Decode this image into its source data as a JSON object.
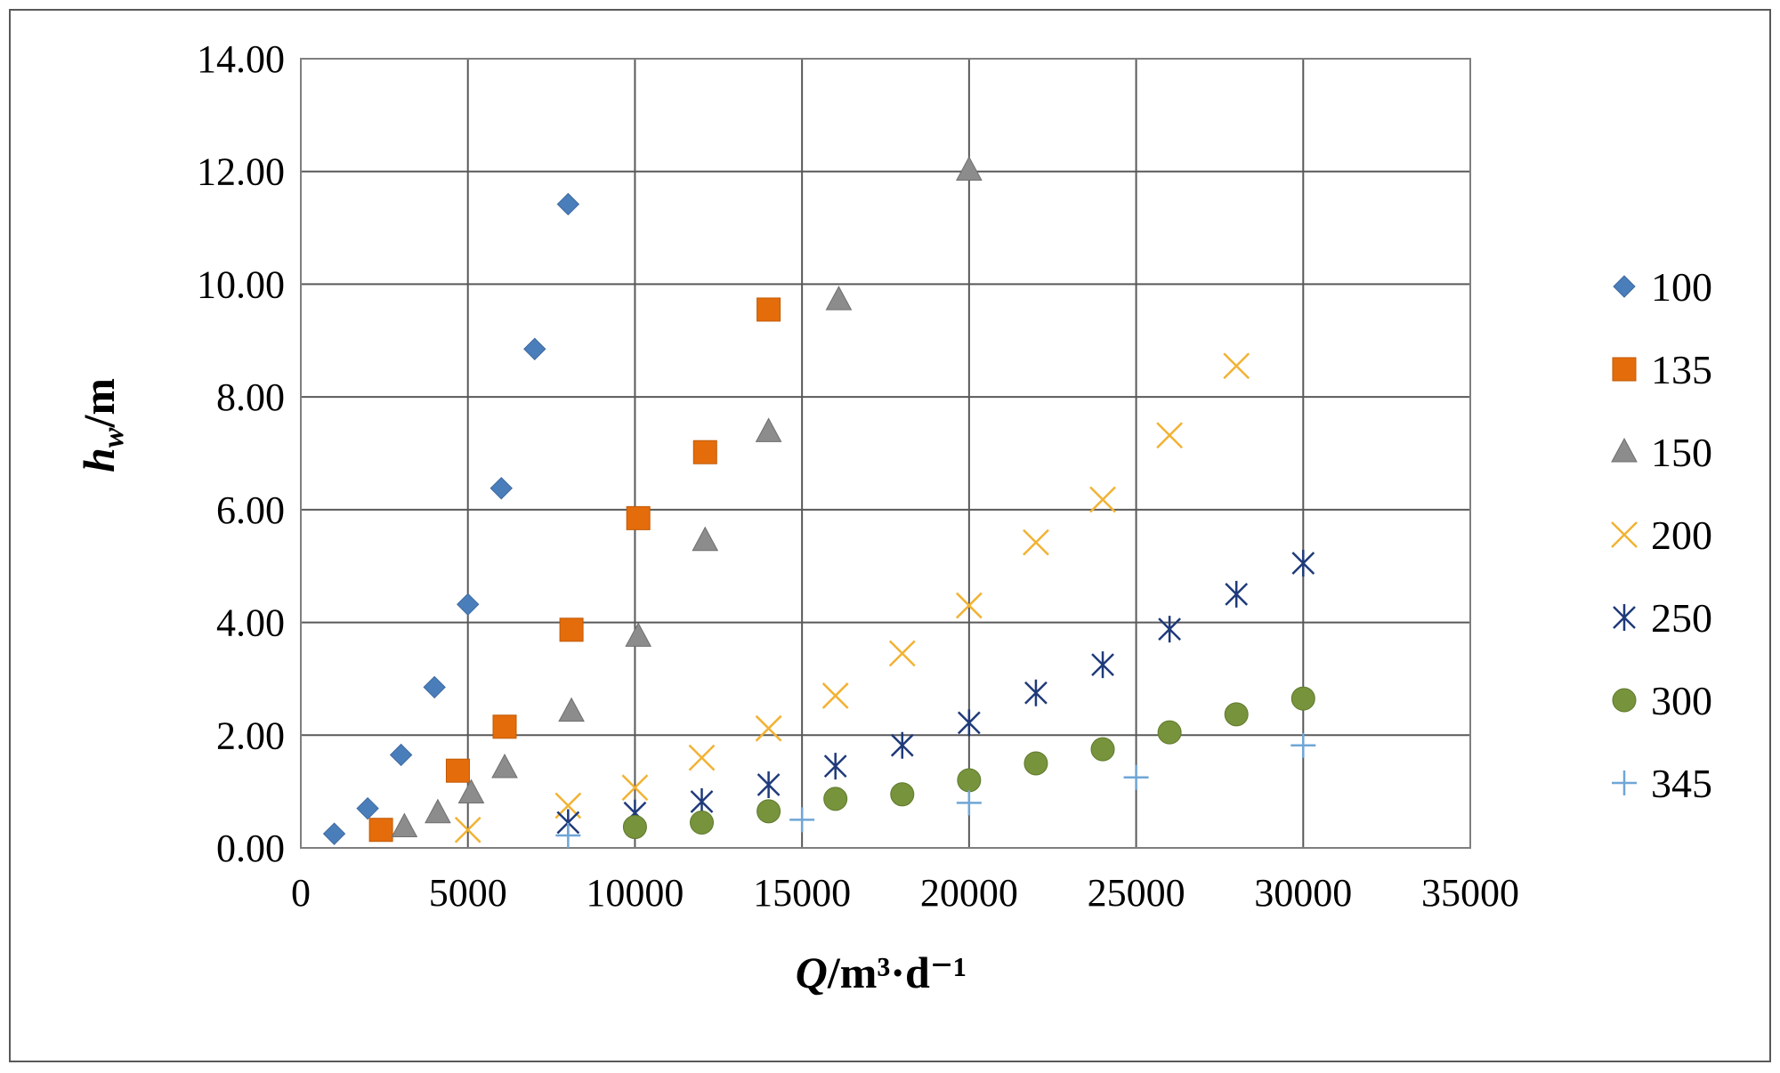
{
  "chart_data": {
    "type": "scatter",
    "title": "",
    "xlabel_var": "Q",
    "xlabel_unit": "/m³·d⁻¹",
    "ylabel_var": "h",
    "ylabel_sub": "w",
    "ylabel_unit": "/m",
    "xlim": [
      0,
      35000
    ],
    "ylim": [
      0,
      14
    ],
    "x_ticks": [
      0,
      5000,
      10000,
      15000,
      20000,
      25000,
      30000,
      35000
    ],
    "x_tick_labels": [
      "0",
      "5000",
      "10000",
      "15000",
      "20000",
      "25000",
      "30000",
      "35000"
    ],
    "y_ticks": [
      0,
      2,
      4,
      6,
      8,
      10,
      12,
      14
    ],
    "y_tick_labels": [
      "0.00",
      "2.00",
      "4.00",
      "6.00",
      "8.00",
      "10.00",
      "12.00",
      "14.00"
    ],
    "grid": true,
    "legend_position": "right",
    "series": [
      {
        "name": "100",
        "marker": "diamond",
        "color": "#4A7EBB",
        "x": [
          1000,
          2000,
          3000,
          4000,
          5000,
          6000,
          7000,
          8000
        ],
        "y": [
          0.25,
          0.7,
          1.65,
          2.85,
          4.32,
          6.38,
          8.85,
          11.42
        ]
      },
      {
        "name": "135",
        "marker": "square",
        "color": "#E46C0A",
        "x": [
          2400,
          4700,
          6100,
          8100,
          10100,
          12100,
          14000
        ],
        "y": [
          0.32,
          1.37,
          2.15,
          3.87,
          5.85,
          7.02,
          9.55
        ]
      },
      {
        "name": "150",
        "marker": "triangle",
        "color": "#8C8C8C",
        "x": [
          3100,
          4100,
          5100,
          6100,
          8100,
          10100,
          12100,
          14000,
          16100,
          20000
        ],
        "y": [
          0.37,
          0.62,
          0.97,
          1.42,
          2.42,
          3.75,
          5.45,
          7.38,
          9.72,
          12.02
        ]
      },
      {
        "name": "200",
        "marker": "x",
        "color": "#F2B233",
        "x": [
          5000,
          8000,
          10000,
          12000,
          14000,
          16000,
          18000,
          20000,
          22000,
          24000,
          26000,
          28000
        ],
        "y": [
          0.32,
          0.75,
          1.07,
          1.6,
          2.12,
          2.7,
          3.45,
          4.3,
          5.42,
          6.18,
          7.32,
          8.55
        ]
      },
      {
        "name": "250",
        "marker": "asterisk",
        "color": "#1F3A7A",
        "x": [
          8000,
          10000,
          12000,
          14000,
          16000,
          18000,
          20000,
          22000,
          24000,
          26000,
          28000,
          30000
        ],
        "y": [
          0.45,
          0.62,
          0.82,
          1.12,
          1.45,
          1.82,
          2.22,
          2.75,
          3.25,
          3.88,
          4.5,
          5.05
        ]
      },
      {
        "name": "300",
        "marker": "circle",
        "color": "#77933C",
        "x": [
          10000,
          12000,
          14000,
          16000,
          18000,
          20000,
          22000,
          24000,
          26000,
          28000,
          30000
        ],
        "y": [
          0.37,
          0.45,
          0.65,
          0.87,
          0.95,
          1.2,
          1.5,
          1.75,
          2.05,
          2.37,
          2.65
        ]
      },
      {
        "name": "345",
        "marker": "plus",
        "color": "#6FA6D6",
        "x": [
          8000,
          15000,
          20000,
          25000,
          30000
        ],
        "y": [
          0.22,
          0.5,
          0.8,
          1.25,
          1.82
        ]
      }
    ]
  }
}
